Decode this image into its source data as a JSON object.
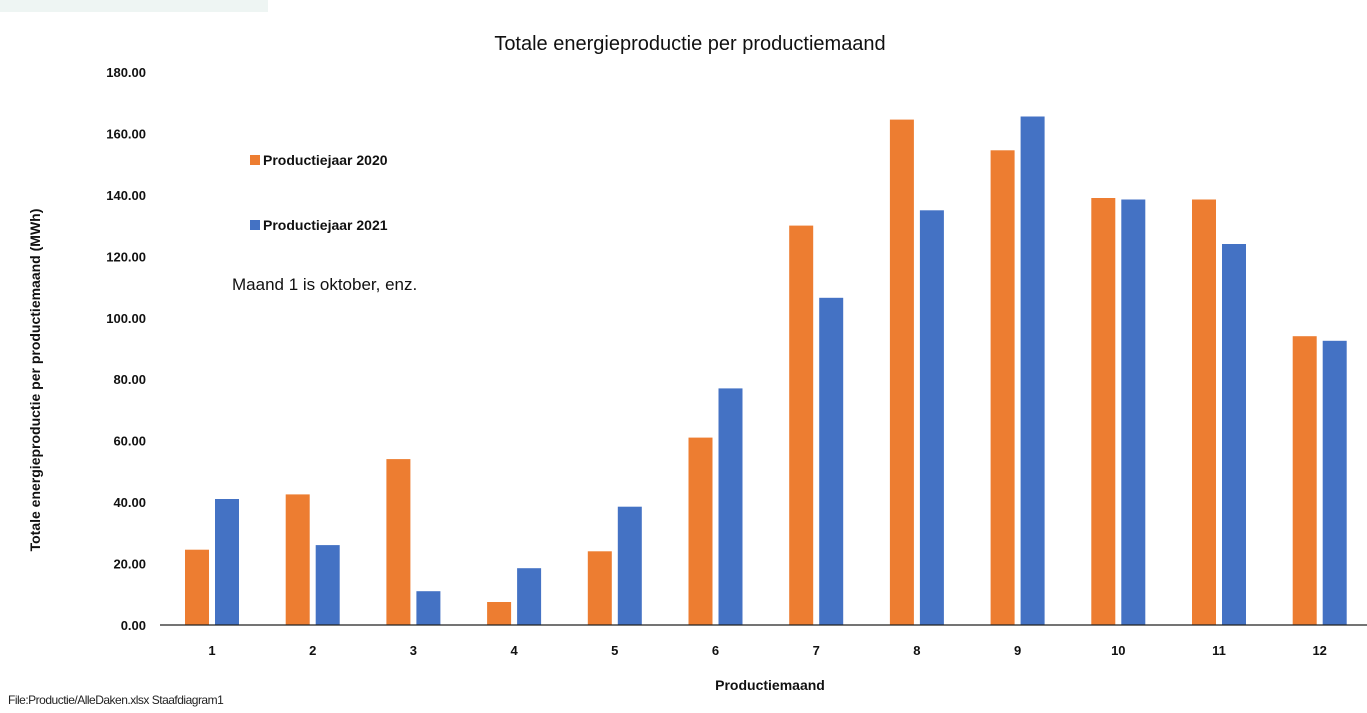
{
  "chart_data": {
    "type": "bar",
    "title": "Totale energieproductie per productiemaand",
    "xlabel": "Productiemaand",
    "ylabel": "Totale energieproductie per productiemaand (MWh)",
    "categories": [
      "1",
      "2",
      "3",
      "4",
      "5",
      "6",
      "7",
      "8",
      "9",
      "10",
      "11",
      "12"
    ],
    "series": [
      {
        "name": "Productiejaar 2020",
        "color": "#ed7d31",
        "values": [
          24.5,
          42.5,
          54.0,
          7.5,
          24.0,
          61.0,
          130.0,
          164.5,
          154.5,
          139.0,
          138.5,
          94.0
        ]
      },
      {
        "name": "Productiejaar 2021",
        "color": "#4472c4",
        "values": [
          41.0,
          26.0,
          11.0,
          18.5,
          38.5,
          77.0,
          106.5,
          135.0,
          165.5,
          138.5,
          124.0,
          92.5
        ]
      }
    ],
    "ylim": [
      0,
      180
    ],
    "yticks": [
      "0.00",
      "20.00",
      "40.00",
      "60.00",
      "80.00",
      "100.00",
      "120.00",
      "140.00",
      "160.00",
      "180.00"
    ],
    "grid": false,
    "legend_position": "top-left",
    "annotation": "Maand 1 is oktober, enz."
  },
  "caption": "File:Productie/AlleDaken.xlsx Staafdiagram1"
}
